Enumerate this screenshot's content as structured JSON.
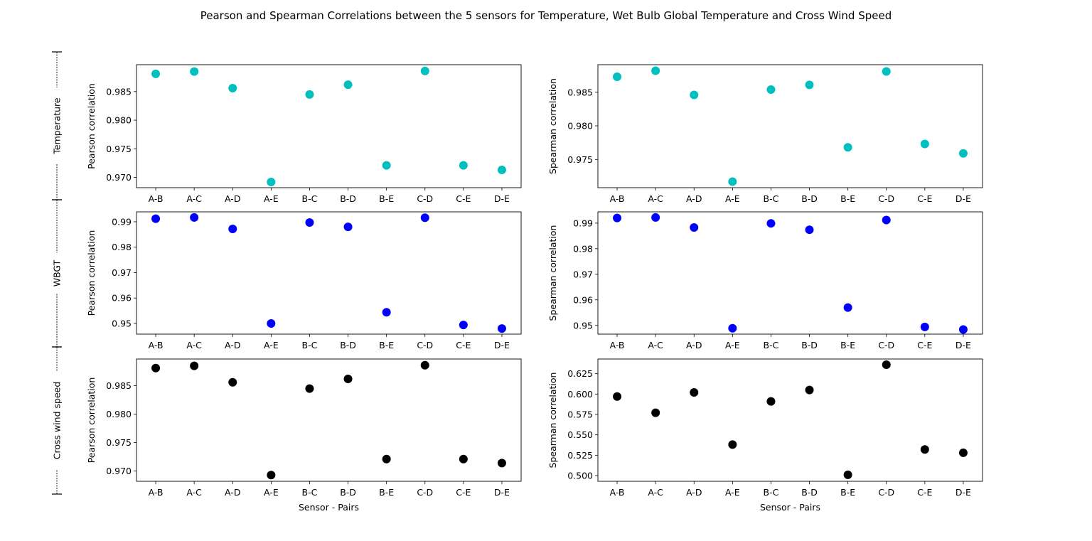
{
  "figure": {
    "title": "Pearson and Spearman Correlations between the 5 sensors for Temperature, Wet Bulb Global Temperature and Cross Wind Speed"
  },
  "row_labels": [
    "Temperature",
    "WBGT",
    "Cross wind speed"
  ],
  "colors": {
    "temperature": "#00bfbf",
    "wbgt": "#0000ff",
    "cross_wind": "#000000"
  },
  "chart_data": [
    {
      "type": "scatter",
      "id": "temp-pearson",
      "row": 0,
      "col": 0,
      "categories": [
        "A-B",
        "A-C",
        "A-D",
        "A-E",
        "B-C",
        "B-D",
        "B-E",
        "C-D",
        "C-E",
        "D-E"
      ],
      "values": [
        0.9881,
        0.9885,
        0.9856,
        0.9692,
        0.9845,
        0.9862,
        0.9721,
        0.9886,
        0.9721,
        0.9713
      ],
      "xlabel": "",
      "ylabel": "Pearson correlation",
      "ylim": [
        0.9682,
        0.9897
      ],
      "yticks": [
        0.97,
        0.975,
        0.98,
        0.985
      ],
      "ytick_labels": [
        "0.970",
        "0.975",
        "0.980",
        "0.985"
      ],
      "color": "#00bfbf"
    },
    {
      "type": "scatter",
      "id": "temp-spearman",
      "row": 0,
      "col": 1,
      "categories": [
        "A-B",
        "A-C",
        "A-D",
        "A-E",
        "B-C",
        "B-D",
        "B-E",
        "C-D",
        "C-E",
        "D-E"
      ],
      "values": [
        0.9873,
        0.9882,
        0.9846,
        0.9717,
        0.9854,
        0.9861,
        0.9768,
        0.9881,
        0.9773,
        0.9759
      ],
      "xlabel": "",
      "ylabel": "Spearman correlation",
      "ylim": [
        0.9708,
        0.9891
      ],
      "yticks": [
        0.975,
        0.98,
        0.985
      ],
      "ytick_labels": [
        "0.975",
        "0.980",
        "0.985"
      ],
      "color": "#00bfbf"
    },
    {
      "type": "scatter",
      "id": "wbgt-pearson",
      "row": 1,
      "col": 0,
      "categories": [
        "A-B",
        "A-C",
        "A-D",
        "A-E",
        "B-C",
        "B-D",
        "B-E",
        "C-D",
        "C-E",
        "D-E"
      ],
      "values": [
        0.9912,
        0.9917,
        0.9872,
        0.95,
        0.9897,
        0.988,
        0.9544,
        0.9916,
        0.9494,
        0.948
      ],
      "xlabel": "",
      "ylabel": "Pearson correlation",
      "ylim": [
        0.9458,
        0.9939
      ],
      "yticks": [
        0.95,
        0.96,
        0.97,
        0.98,
        0.99
      ],
      "ytick_labels": [
        "0.95",
        "0.96",
        "0.97",
        "0.98",
        "0.99"
      ],
      "color": "#0000ff"
    },
    {
      "type": "scatter",
      "id": "wbgt-spearman",
      "row": 1,
      "col": 1,
      "categories": [
        "A-B",
        "A-C",
        "A-D",
        "A-E",
        "B-C",
        "B-D",
        "B-E",
        "C-D",
        "C-E",
        "D-E"
      ],
      "values": [
        0.992,
        0.9922,
        0.9883,
        0.9489,
        0.9899,
        0.9874,
        0.957,
        0.9912,
        0.9494,
        0.9484
      ],
      "xlabel": "",
      "ylabel": "Spearman correlation",
      "ylim": [
        0.9466,
        0.9944
      ],
      "yticks": [
        0.95,
        0.96,
        0.97,
        0.98,
        0.99
      ],
      "ytick_labels": [
        "0.95",
        "0.96",
        "0.97",
        "0.98",
        "0.99"
      ],
      "color": "#0000ff"
    },
    {
      "type": "scatter",
      "id": "wind-pearson",
      "row": 2,
      "col": 0,
      "categories": [
        "A-B",
        "A-C",
        "A-D",
        "A-E",
        "B-C",
        "B-D",
        "B-E",
        "C-D",
        "C-E",
        "D-E"
      ],
      "values": [
        0.9881,
        0.9885,
        0.9856,
        0.9693,
        0.9845,
        0.9862,
        0.9721,
        0.9886,
        0.9721,
        0.9714
      ],
      "xlabel": "Sensor - Pairs",
      "ylabel": "Pearson correlation",
      "ylim": [
        0.9682,
        0.9897
      ],
      "yticks": [
        0.97,
        0.975,
        0.98,
        0.985
      ],
      "ytick_labels": [
        "0.970",
        "0.975",
        "0.980",
        "0.985"
      ],
      "color": "#000000"
    },
    {
      "type": "scatter",
      "id": "wind-spearman",
      "row": 2,
      "col": 1,
      "categories": [
        "A-B",
        "A-C",
        "A-D",
        "A-E",
        "B-C",
        "B-D",
        "B-E",
        "C-D",
        "C-E",
        "D-E"
      ],
      "values": [
        0.597,
        0.577,
        0.602,
        0.538,
        0.591,
        0.605,
        0.501,
        0.636,
        0.532,
        0.528
      ],
      "xlabel": "Sensor - Pairs",
      "ylabel": "Spearman correlation",
      "ylim": [
        0.493,
        0.643
      ],
      "yticks": [
        0.5,
        0.525,
        0.55,
        0.575,
        0.6,
        0.625
      ],
      "ytick_labels": [
        "0.500",
        "0.525",
        "0.550",
        "0.575",
        "0.600",
        "0.625"
      ],
      "color": "#000000"
    }
  ]
}
